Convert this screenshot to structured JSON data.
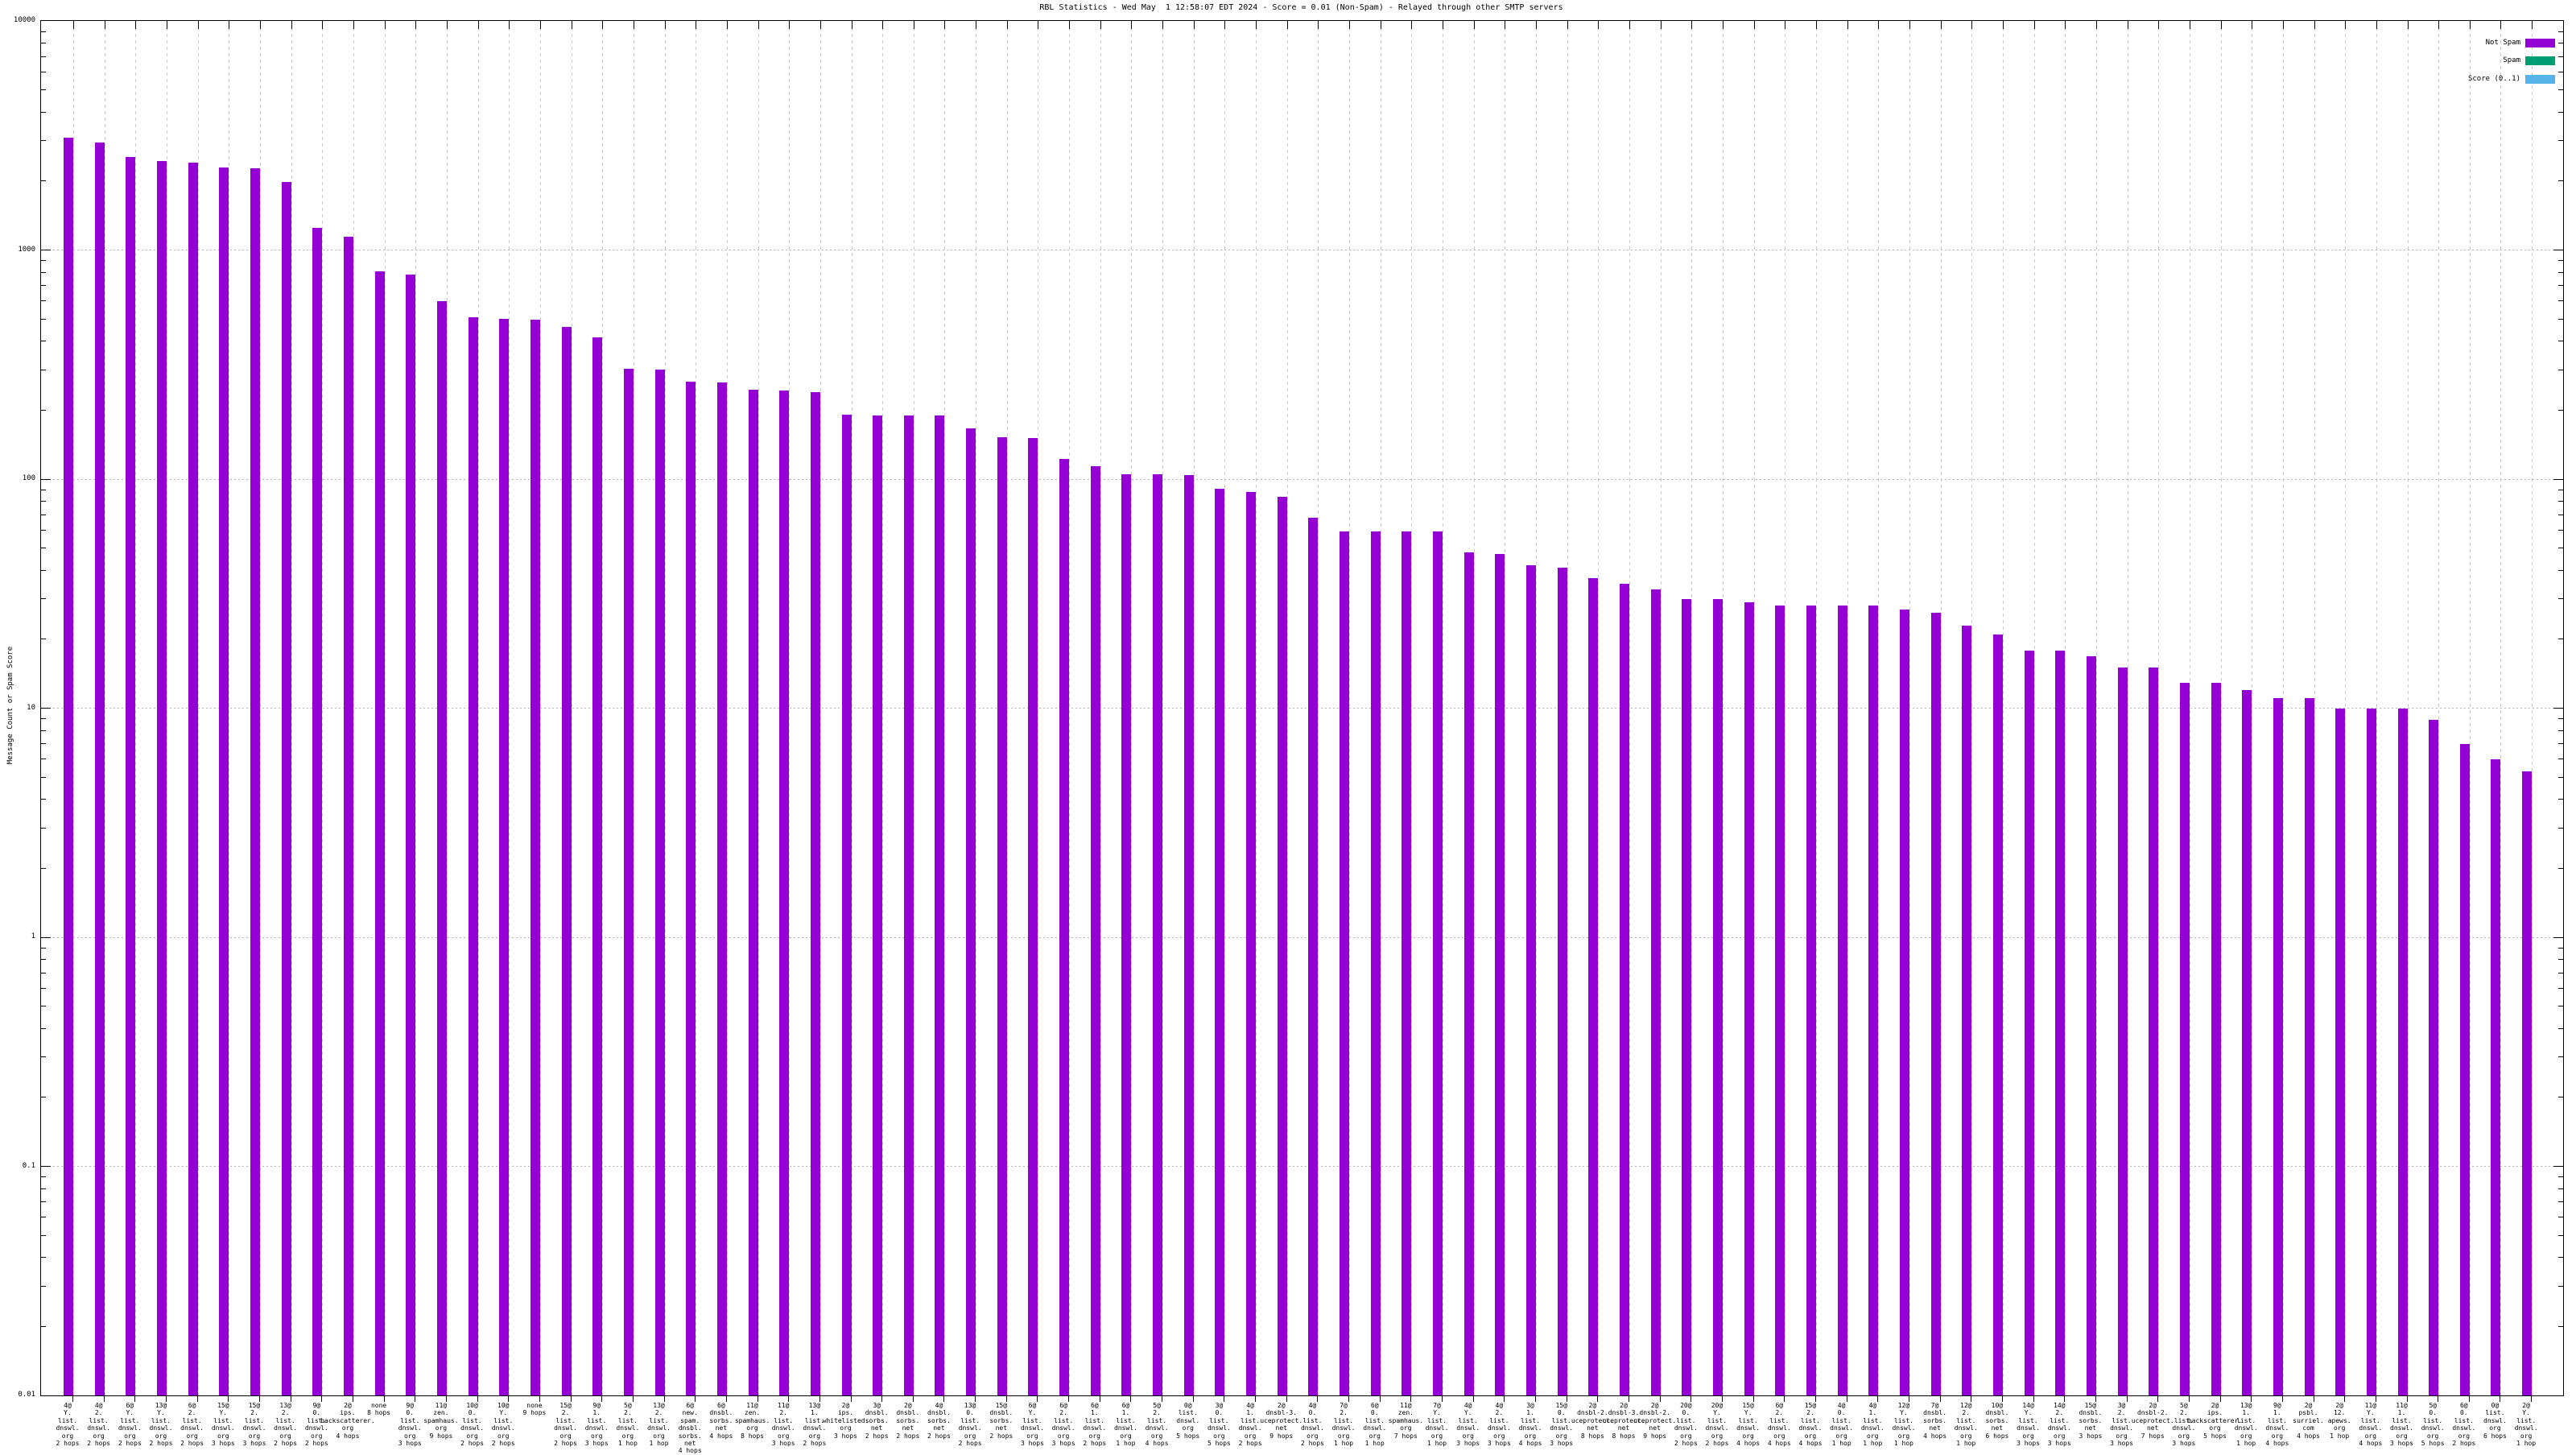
{
  "chart_data": {
    "type": "bar",
    "title": "RBL Statistics - Wed May  1 12:58:07 EDT 2024 - Score = 0.01 (Non-Spam) - Relayed through other SMTP servers",
    "ylabel": "Message Count or Spam Score",
    "y_log_scale": true,
    "ylim": [
      0.01,
      10000
    ],
    "y_tick_labels": [
      "10000",
      "1000",
      "100",
      "10",
      "1",
      "0.1",
      "0.01"
    ],
    "grid": true,
    "legend_position": "top-right",
    "colors": {
      "not_spam": "#9400d3",
      "spam": "#009e73",
      "score": "#56b4e9",
      "grid": "#b4b4b4",
      "axis": "#000000"
    },
    "categories": [
      [
        "4@",
        "Y.",
        "list.",
        "dnswl.",
        "org",
        "2 hops"
      ],
      [
        "4@",
        "2.",
        "list.",
        "dnswl.",
        "org",
        "2 hops"
      ],
      [
        "6@",
        "Y.",
        "list.",
        "dnswl.",
        "org",
        "2 hops"
      ],
      [
        "13@",
        "Y.",
        "list.",
        "dnswl.",
        "org",
        "2 hops"
      ],
      [
        "6@",
        "2.",
        "list.",
        "dnswl.",
        "org",
        "2 hops"
      ],
      [
        "15@",
        "Y.",
        "list.",
        "dnswl.",
        "org",
        "3 hops"
      ],
      [
        "15@",
        "2.",
        "list.",
        "dnswl.",
        "org",
        "3 hops"
      ],
      [
        "13@",
        "2.",
        "list.",
        "dnswl.",
        "org",
        "2 hops"
      ],
      [
        "9@",
        "0.",
        "list.",
        "dnswl.",
        "org",
        "2 hops"
      ],
      [
        "2@",
        "ips.",
        "backscatterer.",
        "org",
        "4 hops"
      ],
      [
        "none",
        "8 hops"
      ],
      [
        "9@",
        "0.",
        "list.",
        "dnswl.",
        "org",
        "3 hops"
      ],
      [
        "11@",
        "zen.",
        "spamhaus.",
        "org",
        "9 hops"
      ],
      [
        "10@",
        "0.",
        "list.",
        "dnswl.",
        "org",
        "2 hops"
      ],
      [
        "10@",
        "Y.",
        "list.",
        "dnswl.",
        "org",
        "2 hops"
      ],
      [
        "none",
        "9 hops"
      ],
      [
        "15@",
        "2.",
        "list.",
        "dnswl.",
        "org",
        "2 hops"
      ],
      [
        "9@",
        "1.",
        "list.",
        "dnswl.",
        "org",
        "3 hops"
      ],
      [
        "5@",
        "2.",
        "list.",
        "dnswl.",
        "org",
        "1 hop"
      ],
      [
        "13@",
        "2.",
        "list.",
        "dnswl.",
        "org",
        "1 hop"
      ],
      [
        "6@",
        "new.",
        "spam.",
        "dnsbl.",
        "sorbs.",
        "net",
        "4 hops"
      ],
      [
        "6@",
        "dnsbl.",
        "sorbs.",
        "net",
        "4 hops"
      ],
      [
        "11@",
        "zen.",
        "spamhaus.",
        "org",
        "8 hops"
      ],
      [
        "11@",
        "2.",
        "list.",
        "dnswl.",
        "org",
        "3 hops"
      ],
      [
        "13@",
        "1.",
        "list.",
        "dnswl.",
        "org",
        "2 hops"
      ],
      [
        "2@",
        "ips.",
        "whitelisted.",
        "org",
        "3 hops"
      ],
      [
        "3@",
        "dnsbl.",
        "sorbs.",
        "net",
        "2 hops"
      ],
      [
        "2@",
        "dnsbl.",
        "sorbs.",
        "net",
        "2 hops"
      ],
      [
        "4@",
        "dnsbl.",
        "sorbs.",
        "net",
        "2 hops"
      ],
      [
        "13@",
        "0.",
        "list.",
        "dnswl.",
        "org",
        "2 hops"
      ],
      [
        "15@",
        "dnsbl.",
        "sorbs.",
        "net",
        "2 hops"
      ],
      [
        "6@",
        "Y.",
        "list.",
        "dnswl.",
        "org",
        "3 hops"
      ],
      [
        "6@",
        "2.",
        "list.",
        "dnswl.",
        "org",
        "3 hops"
      ],
      [
        "6@",
        "1.",
        "list.",
        "dnswl.",
        "org",
        "2 hops"
      ],
      [
        "6@",
        "1.",
        "list.",
        "dnswl.",
        "org",
        "1 hop"
      ],
      [
        "5@",
        "2.",
        "list.",
        "dnswl.",
        "org",
        "4 hops"
      ],
      [
        "0@",
        "list.",
        "dnswl.",
        "org",
        "5 hops"
      ],
      [
        "3@",
        "0.",
        "list.",
        "dnswl.",
        "org",
        "5 hops"
      ],
      [
        "4@",
        "1.",
        "list.",
        "dnswl.",
        "org",
        "2 hops"
      ],
      [
        "2@",
        "dnsbl-3.",
        "uceprotect.",
        "net",
        "9 hops"
      ],
      [
        "4@",
        "0.",
        "list.",
        "dnswl.",
        "org",
        "2 hops"
      ],
      [
        "7@",
        "2.",
        "list.",
        "dnswl.",
        "org",
        "1 hop"
      ],
      [
        "6@",
        "0.",
        "list.",
        "dnswl.",
        "org",
        "1 hop"
      ],
      [
        "11@",
        "zen.",
        "spamhaus.",
        "org",
        "7 hops"
      ],
      [
        "7@",
        "Y.",
        "list.",
        "dnswl.",
        "org",
        "1 hop"
      ],
      [
        "4@",
        "Y.",
        "list.",
        "dnswl.",
        "org",
        "3 hops"
      ],
      [
        "4@",
        "2.",
        "list.",
        "dnswl.",
        "org",
        "3 hops"
      ],
      [
        "3@",
        "1.",
        "list.",
        "dnswl.",
        "org",
        "4 hops"
      ],
      [
        "15@",
        "0.",
        "list.",
        "dnswl.",
        "org",
        "3 hops"
      ],
      [
        "2@",
        "dnsbl-2.",
        "uceprotect.",
        "net",
        "8 hops"
      ],
      [
        "2@",
        "dnsbl-3.",
        "uceprotect.",
        "net",
        "8 hops"
      ],
      [
        "2@",
        "dnsbl-2.",
        "uceprotect.",
        "net",
        "9 hops"
      ],
      [
        "20@",
        "0.",
        "list.",
        "dnswl.",
        "org",
        "2 hops"
      ],
      [
        "20@",
        "Y.",
        "list.",
        "dnswl.",
        "org",
        "2 hops"
      ],
      [
        "15@",
        "Y.",
        "list.",
        "dnswl.",
        "org",
        "4 hops"
      ],
      [
        "6@",
        "2.",
        "list.",
        "dnswl.",
        "org",
        "4 hops"
      ],
      [
        "15@",
        "2.",
        "list.",
        "dnswl.",
        "org",
        "4 hops"
      ],
      [
        "4@",
        "0.",
        "list.",
        "dnswl.",
        "org",
        "1 hop"
      ],
      [
        "4@",
        "1.",
        "list.",
        "dnswl.",
        "org",
        "1 hop"
      ],
      [
        "12@",
        "Y.",
        "list.",
        "dnswl.",
        "org",
        "1 hop"
      ],
      [
        "7@",
        "dnsbl.",
        "sorbs.",
        "net",
        "4 hops"
      ],
      [
        "12@",
        "2.",
        "list.",
        "dnswl.",
        "org",
        "1 hop"
      ],
      [
        "10@",
        "dnsbl.",
        "sorbs.",
        "net",
        "6 hops"
      ],
      [
        "14@",
        "Y.",
        "list.",
        "dnswl.",
        "org",
        "3 hops"
      ],
      [
        "14@",
        "2.",
        "list.",
        "dnswl.",
        "org",
        "3 hops"
      ],
      [
        "15@",
        "dnsbl.",
        "sorbs.",
        "net",
        "3 hops"
      ],
      [
        "3@",
        "2.",
        "list.",
        "dnswl.",
        "org",
        "3 hops"
      ],
      [
        "2@",
        "dnsbl-2.",
        "uceprotect.",
        "net",
        "7 hops"
      ],
      [
        "5@",
        "2.",
        "list.",
        "dnswl.",
        "org",
        "3 hops"
      ],
      [
        "2@",
        "ips.",
        "backscatterer.",
        "org",
        "5 hops"
      ],
      [
        "13@",
        "1.",
        "list.",
        "dnswl.",
        "org",
        "1 hop"
      ],
      [
        "9@",
        "1.",
        "list.",
        "dnswl.",
        "org",
        "4 hops"
      ],
      [
        "2@",
        "psbl.",
        "surriel.",
        "com",
        "4 hops"
      ],
      [
        "2@",
        "12.",
        "apews.",
        "org",
        "1 hop"
      ],
      [
        "11@",
        "Y.",
        "list.",
        "dnswl.",
        "org",
        "4 hops"
      ],
      [
        "11@",
        "1.",
        "list.",
        "dnswl.",
        "org",
        "3 hops"
      ],
      [
        "5@",
        "0.",
        "list.",
        "dnswl.",
        "org",
        "5 hops"
      ],
      [
        "6@",
        "0.",
        "list.",
        "dnswl.",
        "org",
        "2 hops"
      ],
      [
        "0@",
        "list.",
        "dnswl.",
        "org",
        "6 hops"
      ],
      [
        "2@",
        "Y.",
        "list.",
        "dnswl.",
        "org",
        "1 hop"
      ]
    ],
    "series": [
      {
        "name": "Not Spam",
        "color": "#9400d3",
        "values": [
          3100,
          2950,
          2550,
          2450,
          2400,
          2300,
          2280,
          1980,
          1250,
          1140,
          810,
          780,
          600,
          510,
          500,
          495,
          460,
          415,
          303,
          300,
          266,
          265,
          245,
          243,
          240,
          191,
          190,
          190,
          190,
          166,
          152,
          151,
          122,
          114,
          105,
          105,
          104,
          91,
          88,
          84,
          68,
          59,
          59,
          59,
          59,
          48,
          47,
          42,
          41,
          37,
          35,
          33,
          30,
          30,
          29,
          28,
          28,
          28,
          28,
          27,
          26,
          23,
          21,
          17.9,
          17.9,
          16.9,
          15,
          15,
          12.9,
          12.9,
          12,
          11.1,
          11.1,
          10,
          10,
          10,
          8.9,
          7,
          6,
          5.3
        ]
      },
      {
        "name": "Spam",
        "color": "#009e73",
        "values": []
      },
      {
        "name": "Score (0..1)",
        "color": "#56b4e9",
        "values": []
      }
    ]
  }
}
